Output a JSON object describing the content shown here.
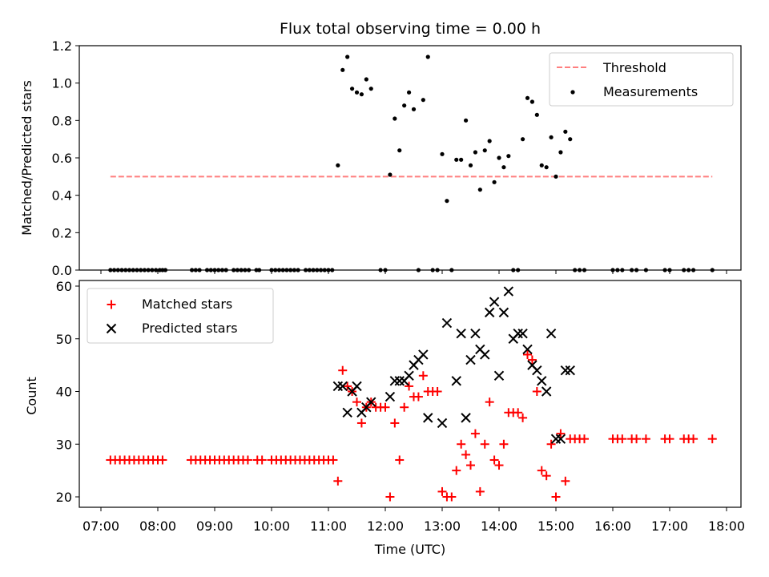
{
  "colors": {
    "threshold": "#ff7f7f",
    "measurement": "#000000",
    "matched": "#ff0000",
    "predicted": "#000000"
  },
  "chart_data": [
    {
      "type": "scatter",
      "title": "Flux total observing time = 0.00 h",
      "xlabel": "",
      "ylabel": "Matched/Predicted stars",
      "xlim": [
        "07:00",
        "18:00"
      ],
      "ylim": [
        0,
        1.2
      ],
      "yticks": [
        "0.0",
        "0.2",
        "0.4",
        "0.6",
        "0.8",
        "1.0",
        "1.2"
      ],
      "grid": false,
      "legend": {
        "position": "upper right",
        "entries": [
          "Threshold",
          "Measurements"
        ]
      },
      "threshold": {
        "name": "Threshold",
        "value": 0.5,
        "x_range": [
          "07:10",
          "17:45"
        ],
        "style": "dashed"
      },
      "series": [
        {
          "name": "Measurements",
          "marker": "dot",
          "x": [
            "07:10",
            "07:14",
            "07:18",
            "07:22",
            "07:26",
            "07:30",
            "07:34",
            "07:38",
            "07:42",
            "07:46",
            "07:50",
            "07:54",
            "07:58",
            "08:02",
            "08:05",
            "08:08",
            "08:36",
            "08:40",
            "08:44",
            "08:52",
            "08:56",
            "09:00",
            "09:04",
            "09:08",
            "09:12",
            "09:20",
            "09:24",
            "09:28",
            "09:32",
            "09:36",
            "09:44",
            "09:47",
            "10:00",
            "10:04",
            "10:08",
            "10:12",
            "10:16",
            "10:20",
            "10:24",
            "10:28",
            "10:36",
            "10:40",
            "10:44",
            "10:48",
            "10:52",
            "10:56",
            "11:00",
            "11:04",
            "11:10",
            "11:15",
            "11:20",
            "11:25",
            "11:30",
            "11:35",
            "11:40",
            "11:45",
            "11:55",
            "12:00",
            "12:05",
            "12:10",
            "12:15",
            "12:20",
            "12:25",
            "12:30",
            "12:35",
            "12:40",
            "12:45",
            "12:50",
            "12:55",
            "13:00",
            "13:05",
            "13:10",
            "13:15",
            "13:20",
            "13:25",
            "13:30",
            "13:35",
            "13:40",
            "13:45",
            "13:50",
            "13:55",
            "14:00",
            "14:05",
            "14:10",
            "14:15",
            "14:20",
            "14:25",
            "14:30",
            "14:35",
            "14:40",
            "14:45",
            "14:50",
            "14:55",
            "15:00",
            "15:05",
            "15:10",
            "15:15",
            "15:20",
            "15:25",
            "15:30",
            "16:00",
            "16:05",
            "16:10",
            "16:20",
            "16:25",
            "16:35",
            "16:55",
            "17:00",
            "17:15",
            "17:20",
            "17:25",
            "17:45"
          ],
          "y": [
            0,
            0,
            0,
            0,
            0,
            0,
            0,
            0,
            0,
            0,
            0,
            0,
            0,
            0,
            0,
            0,
            0,
            0,
            0,
            0,
            0,
            0,
            0,
            0,
            0,
            0,
            0,
            0,
            0,
            0,
            0,
            0,
            0,
            0,
            0,
            0,
            0,
            0,
            0,
            0,
            0,
            0,
            0,
            0,
            0,
            0,
            0,
            0,
            0.56,
            1.07,
            1.14,
            0.97,
            0.95,
            0.94,
            1.02,
            0.97,
            0,
            0,
            0.51,
            0.81,
            0.64,
            0.88,
            0.95,
            0.86,
            0,
            0.91,
            1.14,
            0,
            0,
            0.62,
            0.37,
            0,
            0.59,
            0.59,
            0.8,
            0.56,
            0.63,
            0.43,
            0.64,
            0.69,
            0.47,
            0.6,
            0.55,
            0.61,
            0,
            0,
            0.7,
            0.92,
            0.9,
            0.83,
            0.56,
            0.55,
            0.71,
            0.5,
            0.63,
            0.74,
            0.7,
            0,
            0,
            0,
            0,
            0,
            0,
            0,
            0,
            0,
            0,
            0,
            0,
            0,
            0,
            0
          ]
        }
      ]
    },
    {
      "type": "scatter",
      "title": "",
      "xlabel": "Time (UTC)",
      "ylabel": "Count",
      "xlim": [
        "07:00",
        "18:00"
      ],
      "ylim": [
        20,
        60
      ],
      "xticks": [
        "07:00",
        "08:00",
        "09:00",
        "10:00",
        "11:00",
        "12:00",
        "13:00",
        "14:00",
        "15:00",
        "16:00",
        "17:00",
        "18:00"
      ],
      "yticks": [
        "20",
        "30",
        "40",
        "50",
        "60"
      ],
      "grid": false,
      "legend": {
        "position": "upper left",
        "entries": [
          "Matched stars",
          "Predicted stars"
        ]
      },
      "series": [
        {
          "name": "Matched stars",
          "marker": "plus",
          "x": [
            "07:10",
            "07:15",
            "07:20",
            "07:25",
            "07:30",
            "07:35",
            "07:40",
            "07:45",
            "07:50",
            "07:55",
            "08:00",
            "08:05",
            "08:35",
            "08:40",
            "08:45",
            "08:50",
            "08:55",
            "09:00",
            "09:05",
            "09:10",
            "09:15",
            "09:20",
            "09:25",
            "09:30",
            "09:35",
            "09:45",
            "09:50",
            "10:00",
            "10:05",
            "10:10",
            "10:15",
            "10:20",
            "10:25",
            "10:30",
            "10:35",
            "10:40",
            "10:45",
            "10:50",
            "10:55",
            "11:00",
            "11:05",
            "11:10",
            "11:15",
            "11:20",
            "11:25",
            "11:30",
            "11:35",
            "11:40",
            "11:45",
            "11:50",
            "11:55",
            "12:00",
            "12:05",
            "12:10",
            "12:15",
            "12:20",
            "12:25",
            "12:30",
            "12:35",
            "12:40",
            "12:45",
            "12:50",
            "12:55",
            "13:00",
            "13:05",
            "13:10",
            "13:15",
            "13:20",
            "13:25",
            "13:30",
            "13:35",
            "13:40",
            "13:45",
            "13:50",
            "13:55",
            "14:00",
            "14:05",
            "14:10",
            "14:15",
            "14:20",
            "14:25",
            "14:30",
            "14:35",
            "14:40",
            "14:45",
            "14:50",
            "14:55",
            "15:00",
            "15:05",
            "15:10",
            "15:15",
            "15:20",
            "15:25",
            "15:30",
            "16:00",
            "16:05",
            "16:10",
            "16:20",
            "16:25",
            "16:35",
            "16:55",
            "17:00",
            "17:15",
            "17:20",
            "17:25",
            "17:45"
          ],
          "y": [
            27,
            27,
            27,
            27,
            27,
            27,
            27,
            27,
            27,
            27,
            27,
            27,
            27,
            27,
            27,
            27,
            27,
            27,
            27,
            27,
            27,
            27,
            27,
            27,
            27,
            27,
            27,
            27,
            27,
            27,
            27,
            27,
            27,
            27,
            27,
            27,
            27,
            27,
            27,
            27,
            27,
            23,
            44,
            41,
            40,
            38,
            34,
            37,
            38,
            37,
            37,
            37,
            20,
            34,
            27,
            37,
            41,
            39,
            39,
            43,
            40,
            40,
            40,
            21,
            20,
            20,
            25,
            30,
            28,
            26,
            32,
            21,
            30,
            38,
            27,
            26,
            30,
            36,
            36,
            36,
            35,
            47,
            46,
            40,
            25,
            24,
            30,
            20,
            32,
            23,
            31,
            31,
            31,
            31,
            31,
            31,
            31,
            31,
            31,
            31,
            31,
            31,
            31,
            31,
            31,
            31
          ]
        },
        {
          "name": "Predicted stars",
          "marker": "x",
          "x": [
            "11:10",
            "11:15",
            "11:20",
            "11:25",
            "11:30",
            "11:35",
            "11:40",
            "11:45",
            "12:05",
            "12:10",
            "12:15",
            "12:20",
            "12:25",
            "12:30",
            "12:35",
            "12:40",
            "12:45",
            "13:00",
            "13:05",
            "13:15",
            "13:20",
            "13:25",
            "13:30",
            "13:35",
            "13:40",
            "13:45",
            "13:50",
            "13:55",
            "14:00",
            "14:05",
            "14:10",
            "14:15",
            "14:20",
            "14:25",
            "14:30",
            "14:35",
            "14:40",
            "14:45",
            "14:50",
            "14:55",
            "15:00",
            "15:05",
            "15:10",
            "15:15"
          ],
          "y": [
            41,
            41,
            36,
            40,
            41,
            36,
            37,
            38,
            39,
            42,
            42,
            42,
            43,
            45,
            46,
            47,
            35,
            34,
            53,
            42,
            51,
            35,
            46,
            51,
            48,
            47,
            55,
            57,
            43,
            55,
            59,
            50,
            51,
            51,
            48,
            45,
            44,
            42,
            40,
            51,
            31,
            31,
            44,
            44
          ]
        }
      ]
    }
  ]
}
